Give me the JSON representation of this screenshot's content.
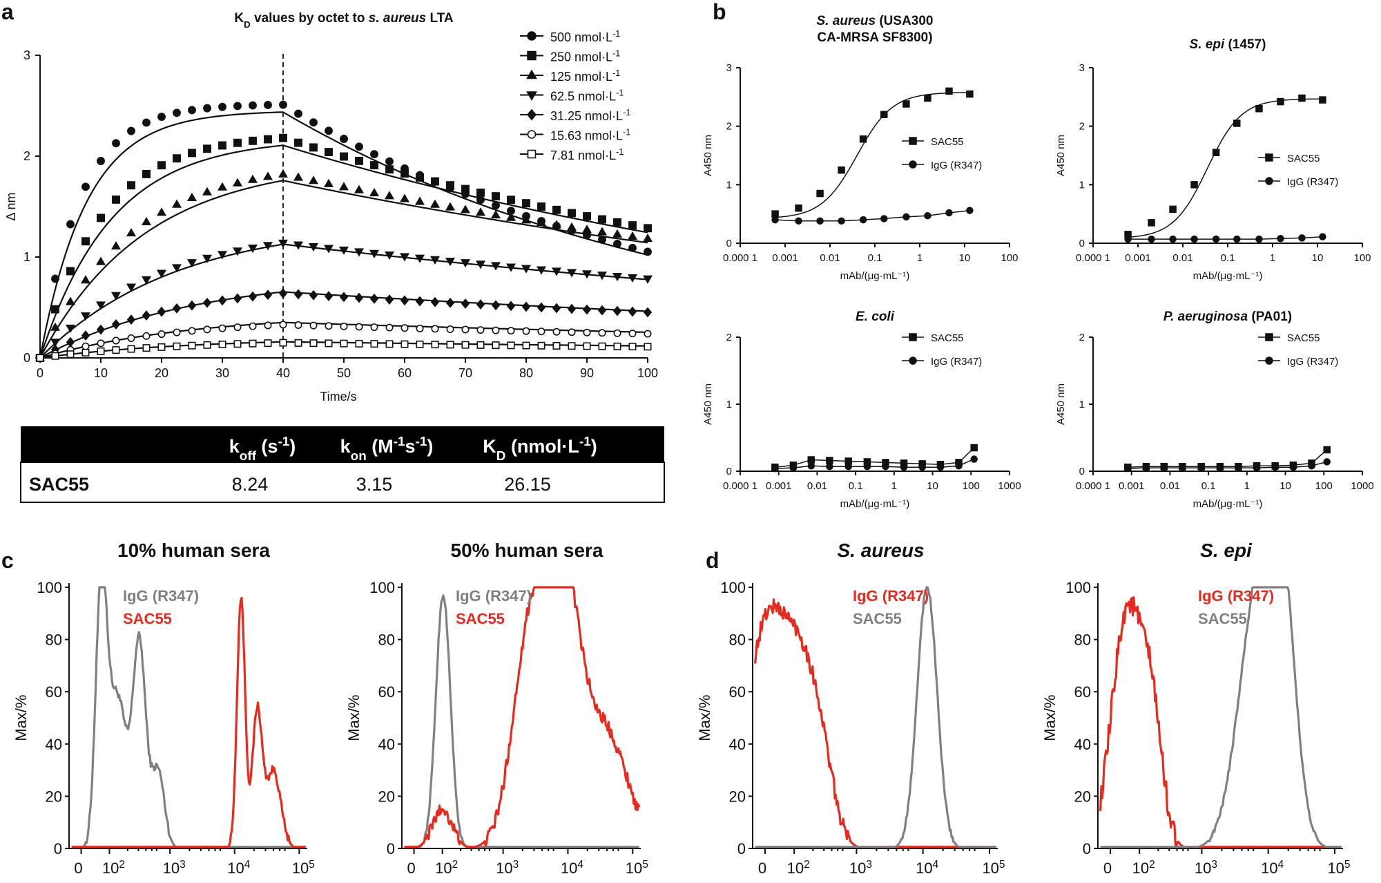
{
  "figure": {
    "panel_labels": [
      "a",
      "b",
      "c",
      "d"
    ]
  },
  "kd_table": {
    "headers": [
      "k<sub>off</sub> (s<sup>-1</sup>)",
      "k<sub>on</sub> (M<sup>-1</sup>s<sup>-1</sup>)",
      "K<sub>D</sub> (nmol·L<sup>-1</sup>)"
    ],
    "row_label": "SAC55",
    "values": [
      "8.24",
      "3.15",
      "26.15"
    ]
  },
  "chart_data": [
    {
      "id": "a",
      "type": "scatter",
      "title": "K_D values by octet to s. aureus LTA",
      "title_parts": [
        "K",
        "D",
        " values by octet to ",
        "s. aureus",
        " LTA"
      ],
      "xlabel": "Time/s",
      "ylabel": "Δ nm",
      "xlim": [
        0,
        100
      ],
      "ylim": [
        0,
        3
      ],
      "xticks": [
        0,
        10,
        20,
        30,
        40,
        50,
        60,
        70,
        80,
        90,
        100
      ],
      "yticks": [
        0,
        1,
        2,
        3
      ],
      "vline": 40,
      "legend_position": "top-right",
      "association_end": 40,
      "series": [
        {
          "name": "500 nmol·L-1",
          "label": "500 nmol·L",
          "marker": "circle",
          "plateau": 2.45,
          "ka": 0.13,
          "kd": 0.0145,
          "peak": 2.51
        },
        {
          "name": "250 nmol·L-1",
          "label": "250 nmol·L",
          "marker": "square",
          "plateau": 2.18,
          "ka": 0.085,
          "kd": 0.0088,
          "peak": 2.18
        },
        {
          "name": "125 nmol·L-1",
          "label": "125 nmol·L",
          "marker": "triangle-up",
          "plateau": 1.95,
          "ka": 0.058,
          "kd": 0.0072,
          "peak": 1.82
        },
        {
          "name": "62.5 nmol·L-1",
          "label": "62.5 nmol·L",
          "marker": "triangle-down",
          "plateau": 1.35,
          "ka": 0.045,
          "kd": 0.0062,
          "peak": 1.14
        },
        {
          "name": "31.25 nmol·L-1",
          "label": "31.25 nmol·L",
          "marker": "diamond",
          "plateau": 0.82,
          "ka": 0.04,
          "kd": 0.0058,
          "peak": 0.64
        },
        {
          "name": "15.63 nmol·L-1",
          "label": "15.63 nmol·L",
          "marker": "circle-open",
          "plateau": 0.44,
          "ka": 0.04,
          "kd": 0.0054,
          "peak": 0.33
        },
        {
          "name": "7.81 nmol·L-1",
          "label": "7.81 nmol·L",
          "marker": "square-open",
          "plateau": 0.2,
          "ka": 0.04,
          "kd": 0.005,
          "peak": 0.15
        }
      ],
      "legend_superscript": "-1"
    },
    {
      "id": "b1",
      "type": "line",
      "title_lines": [
        [
          "S. aureus",
          " (USA300"
        ],
        [
          "",
          "CA-MRSA SF8300)"
        ]
      ],
      "xlabel": "mAb/(μg·mL⁻¹)",
      "ylabel": "A450 nm",
      "xscale": "log",
      "xlim": [
        0.0001,
        100
      ],
      "ylim": [
        0,
        3
      ],
      "xticks": [
        "0.000 1",
        "0.001",
        "0.01",
        "0.1",
        "1",
        "10",
        "100"
      ],
      "yticks": [
        0,
        1,
        2,
        3
      ],
      "legend": [
        "SAC55",
        "IgG (R347)"
      ],
      "series": [
        {
          "name": "SAC55",
          "marker": "square",
          "x": [
            0.0006,
            0.002,
            0.006,
            0.018,
            0.055,
            0.16,
            0.5,
            1.5,
            4.5,
            13
          ],
          "y": [
            0.5,
            0.6,
            0.85,
            1.25,
            1.78,
            2.2,
            2.38,
            2.48,
            2.6,
            2.55
          ],
          "fit": {
            "bottom": 0.42,
            "top": 2.58,
            "ec50": 0.04,
            "hill": 1.1
          }
        },
        {
          "name": "IgG (R347)",
          "marker": "circle",
          "x": [
            0.0006,
            0.002,
            0.006,
            0.018,
            0.055,
            0.16,
            0.5,
            1.5,
            4.5,
            13
          ],
          "y": [
            0.4,
            0.38,
            0.38,
            0.38,
            0.4,
            0.42,
            0.45,
            0.47,
            0.52,
            0.56
          ]
        }
      ]
    },
    {
      "id": "b2",
      "type": "line",
      "title_lines": [
        [
          "S. epi",
          " (1457)"
        ]
      ],
      "xlabel": "mAb/(μg·mL⁻¹)",
      "ylabel": "A450 nm",
      "xscale": "log",
      "xlim": [
        0.0001,
        100
      ],
      "ylim": [
        0,
        3
      ],
      "xticks": [
        "0.000 1",
        "0.001",
        "0.01",
        "0.1",
        "1",
        "10",
        "100"
      ],
      "yticks": [
        0,
        1,
        2,
        3
      ],
      "legend": [
        "SAC55",
        "IgG (R347)"
      ],
      "series": [
        {
          "name": "SAC55",
          "marker": "square",
          "x": [
            0.0006,
            0.002,
            0.006,
            0.018,
            0.055,
            0.16,
            0.5,
            1.5,
            4.5,
            13
          ],
          "y": [
            0.15,
            0.35,
            0.58,
            1.0,
            1.55,
            2.05,
            2.3,
            2.42,
            2.48,
            2.45
          ],
          "fit": {
            "bottom": 0.08,
            "top": 2.47,
            "ec50": 0.035,
            "hill": 1.15
          }
        },
        {
          "name": "IgG (R347)",
          "marker": "circle",
          "x": [
            0.0006,
            0.002,
            0.006,
            0.018,
            0.055,
            0.16,
            0.5,
            1.5,
            4.5,
            13
          ],
          "y": [
            0.07,
            0.07,
            0.07,
            0.07,
            0.07,
            0.07,
            0.07,
            0.08,
            0.09,
            0.11
          ]
        }
      ]
    },
    {
      "id": "b3",
      "type": "line",
      "title_lines": [
        [
          "E. coli",
          ""
        ]
      ],
      "xlabel": "mAb/(μg·mL⁻¹)",
      "ylabel": "A450 nm",
      "xscale": "log",
      "xlim": [
        0.0001,
        1000
      ],
      "ylim": [
        0,
        2
      ],
      "xticks": [
        "0.000 1",
        "0.001",
        "0.01",
        "0.1",
        "1",
        "10",
        "100",
        "1000"
      ],
      "yticks": [
        0,
        1,
        2
      ],
      "legend": [
        "SAC55",
        "IgG (R347)"
      ],
      "series": [
        {
          "name": "SAC55",
          "marker": "square",
          "x": [
            0.0008,
            0.0024,
            0.007,
            0.021,
            0.065,
            0.2,
            0.6,
            1.8,
            5.4,
            16,
            48,
            120
          ],
          "y": [
            0.06,
            0.09,
            0.17,
            0.16,
            0.15,
            0.14,
            0.13,
            0.12,
            0.11,
            0.1,
            0.13,
            0.35
          ]
        },
        {
          "name": "IgG (R347)",
          "marker": "circle",
          "x": [
            0.0008,
            0.0024,
            0.007,
            0.021,
            0.065,
            0.2,
            0.6,
            1.8,
            5.4,
            16,
            48,
            120
          ],
          "y": [
            0.04,
            0.05,
            0.08,
            0.07,
            0.07,
            0.07,
            0.07,
            0.06,
            0.06,
            0.06,
            0.08,
            0.18
          ]
        }
      ]
    },
    {
      "id": "b4",
      "type": "line",
      "title_lines": [
        [
          "P. aeruginosa",
          " (PA01)"
        ]
      ],
      "xlabel": "mAb/(μg·mL⁻¹)",
      "ylabel": "A450 nm",
      "xscale": "log",
      "xlim": [
        0.0001,
        1000
      ],
      "ylim": [
        0,
        2
      ],
      "xticks": [
        "0.000 1",
        "0.001",
        "0.01",
        "0.1",
        "1",
        "10",
        "100",
        "1000"
      ],
      "yticks": [
        0,
        1,
        2
      ],
      "legend": [
        "SAC55",
        "IgG (R347)"
      ],
      "series": [
        {
          "name": "SAC55",
          "marker": "square",
          "x": [
            0.0008,
            0.0024,
            0.007,
            0.021,
            0.065,
            0.2,
            0.6,
            1.8,
            5.4,
            16,
            48,
            120
          ],
          "y": [
            0.06,
            0.07,
            0.07,
            0.07,
            0.07,
            0.07,
            0.07,
            0.08,
            0.08,
            0.09,
            0.12,
            0.32
          ]
        },
        {
          "name": "IgG (R347)",
          "marker": "circle",
          "x": [
            0.0008,
            0.0024,
            0.007,
            0.021,
            0.065,
            0.2,
            0.6,
            1.8,
            5.4,
            16,
            48,
            120
          ],
          "y": [
            0.04,
            0.05,
            0.05,
            0.05,
            0.05,
            0.05,
            0.05,
            0.05,
            0.06,
            0.06,
            0.08,
            0.14
          ]
        }
      ]
    },
    {
      "id": "c1",
      "type": "area",
      "title": "10% human sera",
      "ylabel": "Max/%",
      "ylim": [
        0,
        100
      ],
      "yticks": [
        0,
        20,
        40,
        60,
        80,
        100
      ],
      "xticks": [
        "0",
        "10²",
        "10³",
        "10⁴",
        "10⁵"
      ],
      "legend": [
        {
          "name": "IgG (R347)",
          "color": "#808080"
        },
        {
          "name": "SAC55",
          "color": "#e8291c"
        }
      ],
      "series": [
        {
          "name": "IgG (R347)",
          "color": "#808080",
          "peaks": [
            [
              0.25,
              98,
              0.07
            ],
            [
              0.45,
              58,
              0.11
            ],
            [
              0.72,
              78,
              0.08
            ],
            [
              0.95,
              30,
              0.08
            ]
          ],
          "noise": 3
        },
        {
          "name": "SAC55",
          "color": "#e8291c",
          "peaks": [
            [
              1.98,
              96,
              0.05
            ],
            [
              2.18,
              52,
              0.06
            ],
            [
              2.38,
              30,
              0.09
            ]
          ],
          "noise": 3
        }
      ]
    },
    {
      "id": "c2",
      "type": "area",
      "title": "50% human sera",
      "ylabel": "Max/%",
      "ylim": [
        0,
        100
      ],
      "yticks": [
        0,
        20,
        40,
        60,
        80,
        100
      ],
      "xticks": [
        "0",
        "10²",
        "10³",
        "10⁴",
        "10⁵"
      ],
      "legend": [
        {
          "name": "IgG (R347)",
          "color": "#808080"
        },
        {
          "name": "SAC55",
          "color": "#e8291c"
        }
      ],
      "series": [
        {
          "name": "IgG (R347)",
          "color": "#808080",
          "peaks": [
            [
              0.36,
              97,
              0.09
            ]
          ],
          "noise": 2
        },
        {
          "name": "SAC55",
          "color": "#e8291c",
          "peaks": [
            [
              0.35,
              15,
              0.12
            ],
            [
              1.45,
              85,
              0.22
            ],
            [
              1.85,
              90,
              0.2
            ],
            [
              2.35,
              45,
              0.28
            ]
          ],
          "noise": 5
        }
      ]
    },
    {
      "id": "d1",
      "type": "area",
      "title": "S. aureus",
      "ylabel": "Max/%",
      "ylim": [
        0,
        100
      ],
      "yticks": [
        0,
        20,
        40,
        60,
        80,
        100
      ],
      "xticks": [
        "0",
        "10²",
        "10³",
        "10⁴",
        "10⁵"
      ],
      "legend": [
        {
          "name": "IgG (R347)",
          "color": "#e8291c"
        },
        {
          "name": "SAC55",
          "color": "#808080"
        }
      ],
      "series": [
        {
          "name": "IgG (R347)",
          "color": "#e8291c",
          "peaks": [
            [
              0.02,
              85,
              0.25
            ],
            [
              0.45,
              55,
              0.2
            ],
            [
              0.7,
              20,
              0.15
            ]
          ],
          "noise": 6
        },
        {
          "name": "SAC55",
          "color": "#808080",
          "peaks": [
            [
              1.95,
              100,
              0.12
            ]
          ],
          "noise": 2
        }
      ]
    },
    {
      "id": "d2",
      "type": "area",
      "title": "S. epi",
      "ylabel": "Max/%",
      "ylim": [
        0,
        100
      ],
      "yticks": [
        0,
        20,
        40,
        60,
        80,
        100
      ],
      "xticks": [
        "0",
        "10²",
        "10³",
        "10⁴",
        "10⁵"
      ],
      "legend": [
        {
          "name": "IgG (R347)",
          "color": "#e8291c"
        },
        {
          "name": "SAC55",
          "color": "#808080"
        }
      ],
      "series": [
        {
          "name": "IgG (R347)",
          "color": "#e8291c",
          "peaks": [
            [
              0.2,
              90,
              0.18
            ],
            [
              0.5,
              45,
              0.13
            ]
          ],
          "noise": 9
        },
        {
          "name": "SAC55",
          "color": "#808080",
          "peaks": [
            [
              1.75,
              88,
              0.22
            ],
            [
              2.05,
              95,
              0.17
            ]
          ],
          "noise": 2
        }
      ]
    }
  ]
}
